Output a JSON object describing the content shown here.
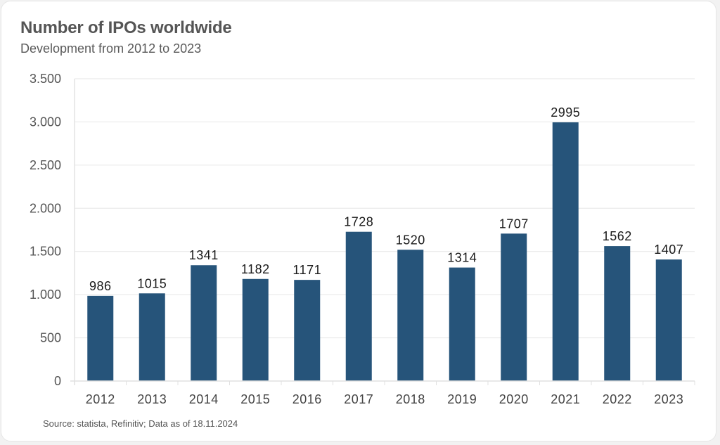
{
  "chart_data": {
    "type": "bar",
    "title": "Number of IPOs worldwide",
    "subtitle": "Development from 2012 to 2023",
    "xlabel": "",
    "ylabel": "",
    "categories": [
      "2012",
      "2013",
      "2014",
      "2015",
      "2016",
      "2017",
      "2018",
      "2019",
      "2020",
      "2021",
      "2022",
      "2023"
    ],
    "values": [
      986,
      1015,
      1341,
      1182,
      1171,
      1728,
      1520,
      1314,
      1707,
      2995,
      1562,
      1407
    ],
    "data_labels": [
      "986",
      "1015",
      "1341",
      "1182",
      "1171",
      "1728",
      "1520",
      "1314",
      "1707",
      "2995",
      "1562",
      "1407"
    ],
    "ylim": [
      0,
      3500
    ],
    "yticks": [
      0,
      500,
      1000,
      1500,
      2000,
      2500,
      3000,
      3500
    ],
    "ytick_labels": [
      "0",
      "500",
      "1.000",
      "1.500",
      "2.000",
      "2.500",
      "3.000",
      "3.500"
    ],
    "grid": true,
    "legend": "none",
    "bar_color": "#26547a",
    "source": "Source: statista, Refinitiv; Data as of 18.11.2024"
  }
}
